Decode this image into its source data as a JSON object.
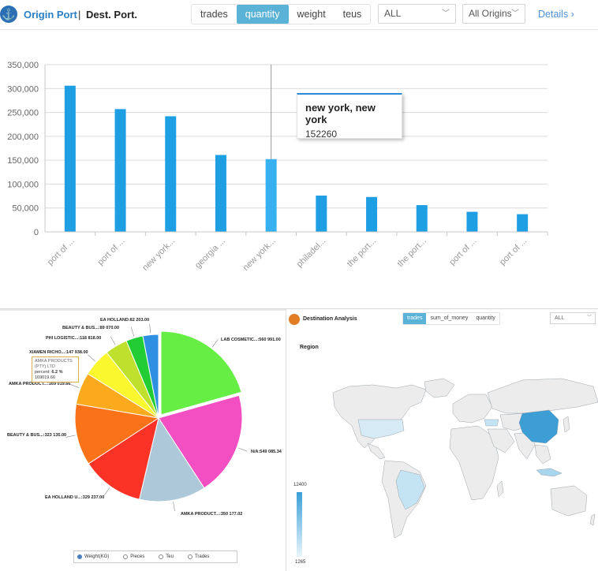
{
  "header": {
    "origin_tab": "Origin Port",
    "divider": "|",
    "dest_tab": "Dest. Port.",
    "metric_tabs": [
      {
        "label": "trades",
        "active": false
      },
      {
        "label": "quantity",
        "active": true
      },
      {
        "label": "weight",
        "active": false
      },
      {
        "label": "teus",
        "active": false
      }
    ],
    "filter_all": "ALL",
    "filter_origins": "All Origins",
    "details_link": "Details ›",
    "accent": "#5ab2d6"
  },
  "chart_data": [
    {
      "type": "bar",
      "categories": [
        "port of ...",
        "port of ...",
        "new york...",
        "georgia ...",
        "new york...",
        "philadel...",
        "the port...",
        "the port...",
        "port of ...",
        "port of ..."
      ],
      "values": [
        306000,
        257000,
        242000,
        161000,
        152260,
        76000,
        73000,
        56000,
        42000,
        37000
      ],
      "highlight_index": 4,
      "ylim": [
        0,
        350000
      ],
      "yticks": [
        "0",
        "50,000",
        "100,000",
        "150,000",
        "200,000",
        "250,000",
        "300,000",
        "350,000"
      ],
      "color": "#1f9fe3",
      "grid": true
    },
    {
      "type": "pie",
      "slices": [
        {
          "label": "LAB COSMETIC...:560 991.00",
          "value": 560991,
          "color": "#66ee44"
        },
        {
          "label": "N/A:549 085.34",
          "value": 549085.34,
          "color": "#f24fc3"
        },
        {
          "label": "AMKA PRODUCT...:350 177.02",
          "value": 350177.02,
          "color": "#adc8d9"
        },
        {
          "label": "EA HOLLAND U...:329 237.00",
          "value": 329237,
          "color": "#fa3326"
        },
        {
          "label": "BEAUTY & BUS...:323 135.00",
          "value": 323135,
          "color": "#fb7318"
        },
        {
          "label": "AMKA PRODUCT...:169 019.66",
          "value": 169019.66,
          "color": "#fba91d"
        },
        {
          "label": "XIAMEN RICHO...:147 938.00",
          "value": 147938,
          "color": "#faf72e"
        },
        {
          "label": "PHI LOGISTIC...:118 818.00",
          "value": 118818,
          "color": "#bfe02c"
        },
        {
          "label": "BEAUTY & BUS...:89 070.00",
          "value": 89070,
          "color": "#22cc33"
        },
        {
          "label": "EA HOLLAND:82 203.00",
          "value": 82203,
          "color": "#2f8fe0"
        }
      ]
    }
  ],
  "tooltip": {
    "title": "new york, new york",
    "value": "152260"
  },
  "pie_tooltip": {
    "name": "AMKA PRODUCTS (PTY) LTD",
    "percent_label": "percent:",
    "percent": "6.2 %",
    "value": "169019.66"
  },
  "pie_options": [
    {
      "label": "Weight(KG)",
      "selected": true
    },
    {
      "label": "Pieces",
      "selected": false
    },
    {
      "label": "Teu",
      "selected": false
    },
    {
      "label": "Trades",
      "selected": false
    }
  ],
  "destination": {
    "title": "Destination Analysis",
    "tabs": [
      {
        "label": "trades",
        "active": true
      },
      {
        "label": "sum_of_money",
        "active": false
      },
      {
        "label": "quantity",
        "active": false
      }
    ],
    "filter": "ALL",
    "region_label": "Region",
    "scale_max": "12400",
    "scale_min": "1265"
  }
}
